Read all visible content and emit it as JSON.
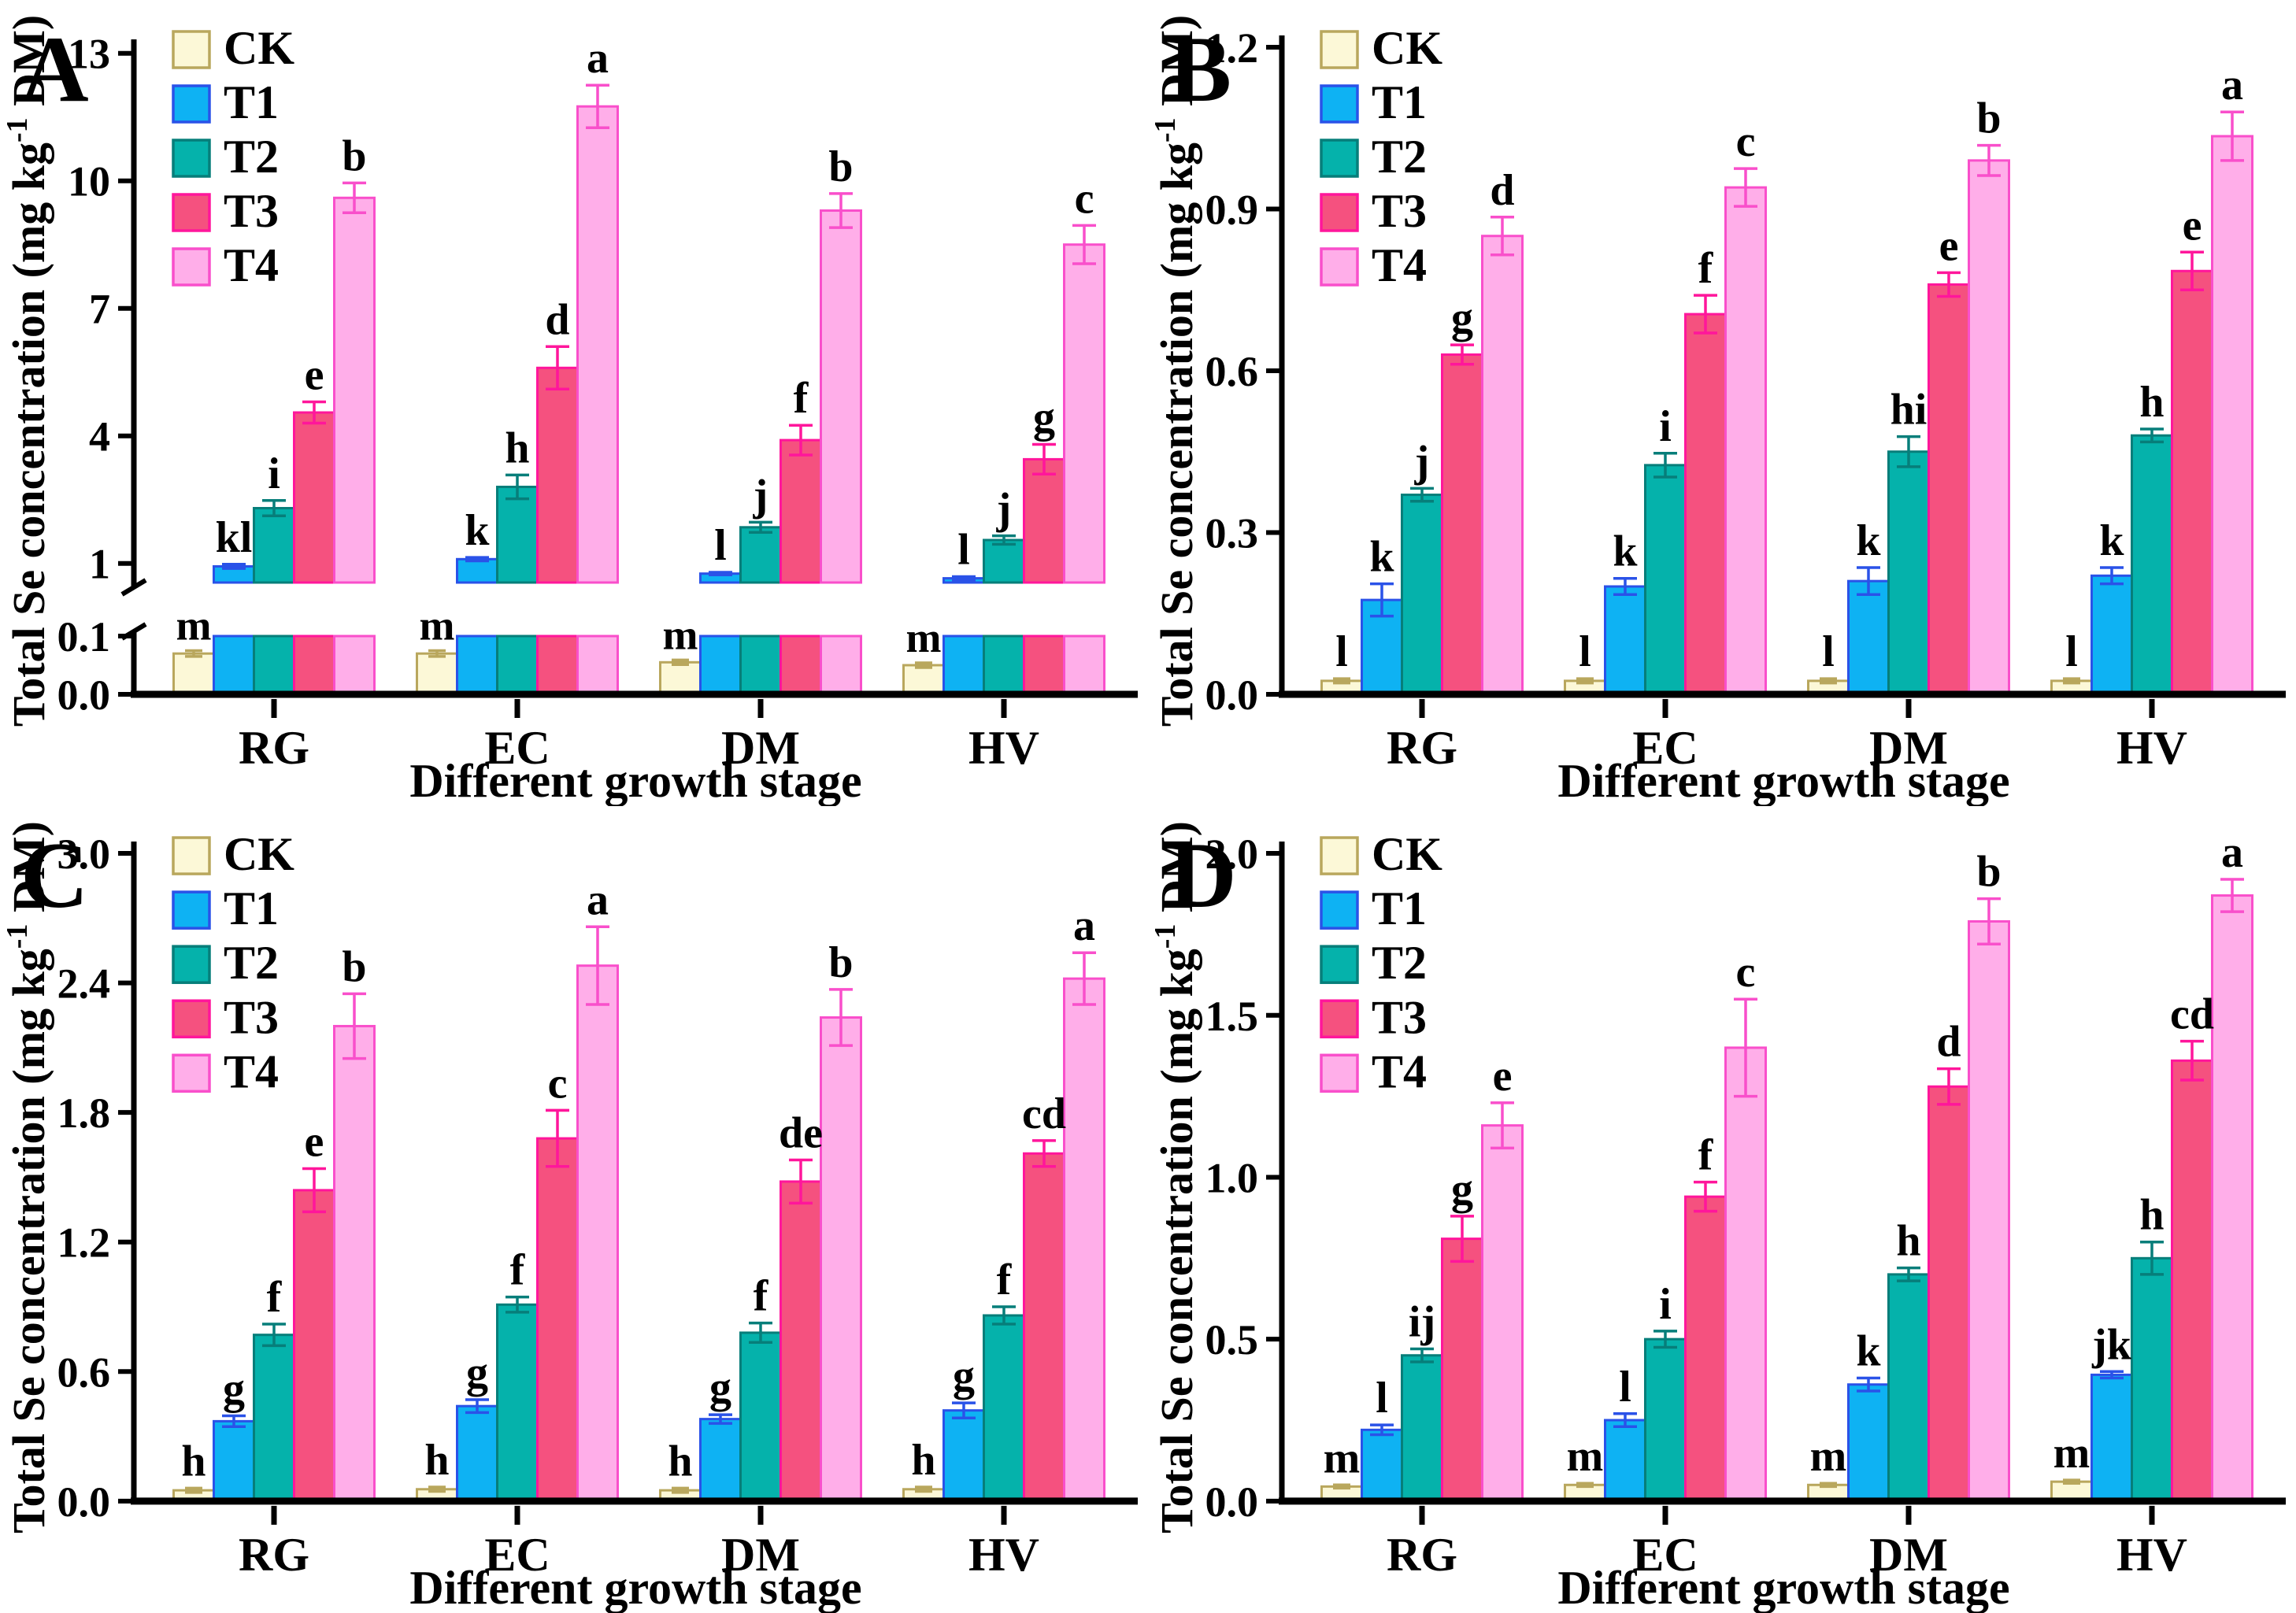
{
  "figure": {
    "panel_labels": [
      "A",
      "B",
      "C",
      "D"
    ],
    "xlabel": "Different growth stage",
    "ylabel": {
      "pre": "Total Se concentration (mg kg",
      "sup": "-1",
      "post": " DM)"
    },
    "categories": [
      "RG",
      "EC",
      "DM",
      "HV"
    ],
    "legend": [
      "CK",
      "T1",
      "T2",
      "T3",
      "T4"
    ],
    "colors": {
      "CK": {
        "fill": "#FCF8D7",
        "edge": "#B9A75D"
      },
      "T1": {
        "fill": "#0EB2F3",
        "edge": "#2A52E8"
      },
      "T2": {
        "fill": "#05B2AB",
        "edge": "#077E7A"
      },
      "T3": {
        "fill": "#F5517F",
        "edge": "#FF169B"
      },
      "T4": {
        "fill": "#FFAEE9",
        "edge": "#F94FCB"
      }
    }
  },
  "chart_data": [
    {
      "type": "bar",
      "panel": "A",
      "title": "",
      "xlabel": "Different growth stage",
      "ylabel": "Total Se concentration (mg kg-1 DM)",
      "categories": [
        "RG",
        "EC",
        "DM",
        "HV"
      ],
      "legend_position": "top-left",
      "broken_axis": {
        "lower_range": [
          0.0,
          0.1
        ],
        "lower_ticks": [
          "0.0",
          "0.1"
        ],
        "upper_range": [
          1,
          13
        ],
        "upper_ticks": [
          "1",
          "4",
          "7",
          "10",
          "13"
        ]
      },
      "series": [
        {
          "name": "CK",
          "values": [
            0.07,
            0.07,
            0.055,
            0.05
          ],
          "errors": [
            0.005,
            0.005,
            0.004,
            0.004
          ],
          "letters": [
            "m",
            "m",
            "m",
            "m"
          ]
        },
        {
          "name": "T1",
          "values": [
            0.93,
            1.1,
            0.76,
            0.65
          ],
          "errors": [
            0.05,
            0.04,
            0.03,
            0.04
          ],
          "letters": [
            "kl",
            "k",
            "l",
            "l"
          ]
        },
        {
          "name": "T2",
          "values": [
            2.3,
            2.8,
            1.85,
            1.55
          ],
          "errors": [
            0.18,
            0.28,
            0.12,
            0.1
          ],
          "letters": [
            "i",
            "h",
            "j",
            "j"
          ]
        },
        {
          "name": "T3",
          "values": [
            4.55,
            5.6,
            3.9,
            3.45
          ],
          "errors": [
            0.25,
            0.5,
            0.35,
            0.35
          ],
          "letters": [
            "e",
            "d",
            "f",
            "g"
          ]
        },
        {
          "name": "T4",
          "values": [
            9.6,
            11.75,
            9.3,
            8.5
          ],
          "errors": [
            0.35,
            0.5,
            0.4,
            0.45
          ],
          "letters": [
            "b",
            "a",
            "b",
            "c"
          ]
        }
      ]
    },
    {
      "type": "bar",
      "panel": "B",
      "title": "",
      "xlabel": "Different growth stage",
      "ylabel": "Total Se concentration (mg kg-1 DM)",
      "categories": [
        "RG",
        "EC",
        "DM",
        "HV"
      ],
      "legend_position": "top-left",
      "ylim": [
        0,
        1.2
      ],
      "yticks": [
        "0.0",
        "0.3",
        "0.6",
        "0.9",
        "1.2"
      ],
      "series": [
        {
          "name": "CK",
          "values": [
            0.025,
            0.025,
            0.025,
            0.025
          ],
          "errors": [
            0.004,
            0.004,
            0.004,
            0.004
          ],
          "letters": [
            "l",
            "l",
            "l",
            "l"
          ]
        },
        {
          "name": "T1",
          "values": [
            0.175,
            0.2,
            0.21,
            0.22
          ],
          "errors": [
            0.03,
            0.015,
            0.025,
            0.015
          ],
          "letters": [
            "k",
            "k",
            "k",
            "k"
          ]
        },
        {
          "name": "T2",
          "values": [
            0.37,
            0.425,
            0.45,
            0.48
          ],
          "errors": [
            0.012,
            0.022,
            0.028,
            0.012
          ],
          "letters": [
            "j",
            "i",
            "hi",
            "h"
          ]
        },
        {
          "name": "T3",
          "values": [
            0.63,
            0.705,
            0.76,
            0.785
          ],
          "errors": [
            0.018,
            0.035,
            0.022,
            0.035
          ],
          "letters": [
            "g",
            "f",
            "e",
            "e"
          ]
        },
        {
          "name": "T4",
          "values": [
            0.85,
            0.94,
            0.99,
            1.035
          ],
          "errors": [
            0.035,
            0.035,
            0.028,
            0.045
          ],
          "letters": [
            "d",
            "c",
            "b",
            "a"
          ]
        }
      ]
    },
    {
      "type": "bar",
      "panel": "C",
      "title": "",
      "xlabel": "Different growth stage",
      "ylabel": "Total Se concentration (mg kg-1 DM)",
      "categories": [
        "RG",
        "EC",
        "DM",
        "HV"
      ],
      "legend_position": "top-left",
      "ylim": [
        0,
        3.0
      ],
      "yticks": [
        "0.0",
        "0.6",
        "1.2",
        "1.8",
        "2.4",
        "3.0"
      ],
      "series": [
        {
          "name": "CK",
          "values": [
            0.05,
            0.055,
            0.05,
            0.055
          ],
          "errors": [
            0.01,
            0.01,
            0.01,
            0.01
          ],
          "letters": [
            "h",
            "h",
            "h",
            "h"
          ]
        },
        {
          "name": "T1",
          "values": [
            0.37,
            0.44,
            0.38,
            0.42
          ],
          "errors": [
            0.025,
            0.03,
            0.02,
            0.035
          ],
          "letters": [
            "g",
            "g",
            "g",
            "g"
          ]
        },
        {
          "name": "T2",
          "values": [
            0.77,
            0.91,
            0.78,
            0.86
          ],
          "errors": [
            0.05,
            0.035,
            0.045,
            0.04
          ],
          "letters": [
            "f",
            "f",
            "f",
            "f"
          ]
        },
        {
          "name": "T3",
          "values": [
            1.44,
            1.68,
            1.48,
            1.61
          ],
          "errors": [
            0.1,
            0.13,
            0.1,
            0.06
          ],
          "letters": [
            "e",
            "c",
            "de",
            "cd"
          ]
        },
        {
          "name": "T4",
          "values": [
            2.2,
            2.48,
            2.24,
            2.42
          ],
          "errors": [
            0.15,
            0.18,
            0.13,
            0.12
          ],
          "letters": [
            "b",
            "a",
            "b",
            "a"
          ]
        }
      ]
    },
    {
      "type": "bar",
      "panel": "D",
      "title": "",
      "xlabel": "Different growth stage",
      "ylabel": "Total Se concentration (mg kg-1 DM)",
      "categories": [
        "RG",
        "EC",
        "DM",
        "HV"
      ],
      "legend_position": "top-left",
      "ylim": [
        0,
        2.0
      ],
      "yticks": [
        "0.0",
        "0.5",
        "1.0",
        "1.5",
        "2.0"
      ],
      "series": [
        {
          "name": "CK",
          "values": [
            0.045,
            0.05,
            0.05,
            0.06
          ],
          "errors": [
            0.005,
            0.005,
            0.005,
            0.005
          ],
          "letters": [
            "m",
            "m",
            "m",
            "m"
          ]
        },
        {
          "name": "T1",
          "values": [
            0.22,
            0.25,
            0.36,
            0.39
          ],
          "errors": [
            0.015,
            0.02,
            0.02,
            0.01
          ],
          "letters": [
            "l",
            "l",
            "k",
            "jk"
          ]
        },
        {
          "name": "T2",
          "values": [
            0.45,
            0.5,
            0.7,
            0.75
          ],
          "errors": [
            0.02,
            0.025,
            0.02,
            0.05
          ],
          "letters": [
            "ij",
            "i",
            "h",
            "h"
          ]
        },
        {
          "name": "T3",
          "values": [
            0.81,
            0.94,
            1.28,
            1.36
          ],
          "errors": [
            0.07,
            0.045,
            0.055,
            0.06
          ],
          "letters": [
            "g",
            "f",
            "d",
            "cd"
          ]
        },
        {
          "name": "T4",
          "values": [
            1.16,
            1.4,
            1.79,
            1.87
          ],
          "errors": [
            0.07,
            0.15,
            0.07,
            0.05
          ],
          "letters": [
            "e",
            "c",
            "b",
            "a"
          ]
        }
      ]
    }
  ]
}
